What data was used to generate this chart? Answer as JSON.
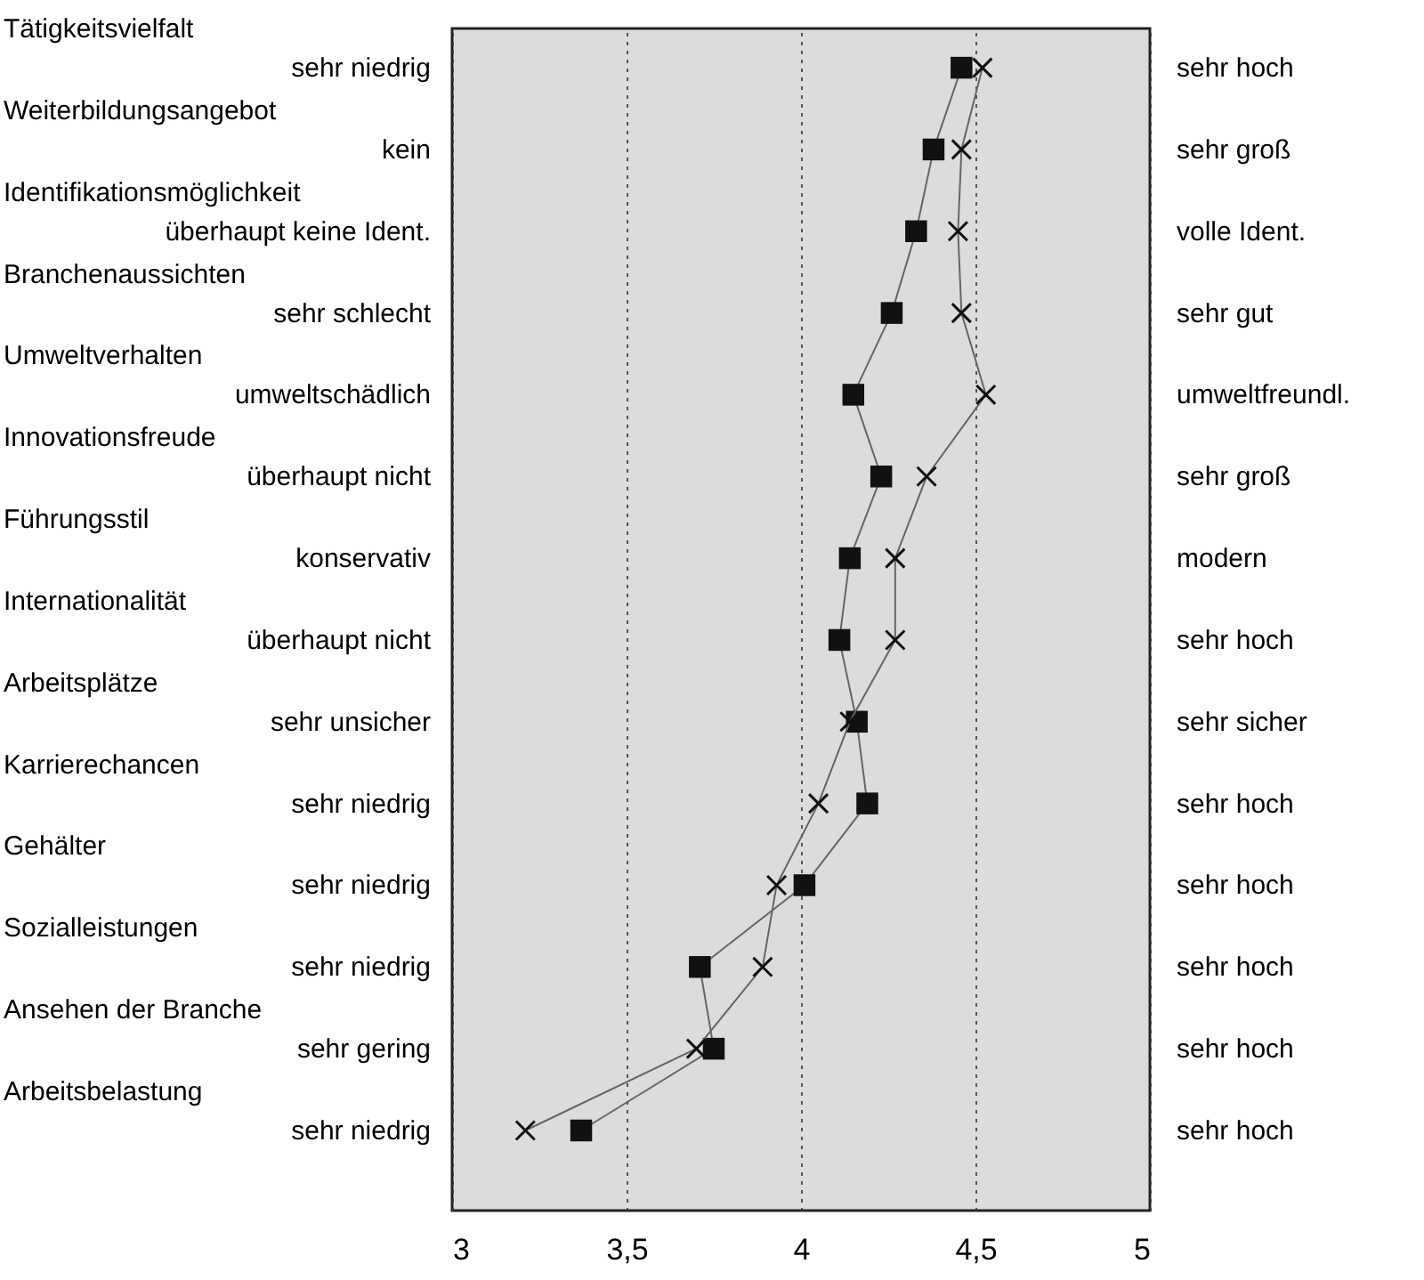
{
  "chart_data": {
    "type": "line",
    "categories": [
      "Tätigkeitsvielfalt\nsehr niedrig",
      "Weiterbildungsangebot\nkein",
      "Identifikationsmöglichkeit\nüberhaupt keine Ident.",
      "Branchenaussichten\nsehr schlecht",
      "Umweltverhalten\numweltschädlich",
      "Innovationsfreude\nüberhaupt nicht",
      "Führungsstil\nkonservativ",
      "Internationalität\nüberhaupt nicht",
      "Arbeitsplätze\nsehr unsicher",
      "Karrierechancen\nsehr niedrig",
      "Gehälter\nsehr niedrig",
      "Sozialleistungen\nsehr niedrig",
      "Ansehen der Branche\nsehr gering",
      "Arbeitsbelastung\nsehr niedrig"
    ],
    "y2_categories": [
      "sehr hoch",
      "sehr groß",
      "volle Ident.",
      "sehr gut",
      "umweltfreundl.",
      "sehr groß",
      "modern",
      "sehr hoch",
      "sehr sicher",
      "sehr hoch",
      "sehr hoch",
      "sehr hoch",
      "sehr hoch",
      "sehr hoch"
    ],
    "orientation": "horizontal",
    "series": [
      {
        "color": "#111111",
        "marker": "square",
        "values": [
          4.46,
          4.38,
          4.33,
          4.26,
          4.15,
          4.23,
          4.14,
          4.11,
          4.16,
          4.19,
          4.01,
          3.71,
          3.75,
          3.37
        ]
      },
      {
        "color": "#111111",
        "marker": "cross",
        "values": [
          4.52,
          4.46,
          4.45,
          4.46,
          4.53,
          4.36,
          4.27,
          4.27,
          4.14,
          4.05,
          3.93,
          3.89,
          3.7,
          3.21
        ]
      }
    ],
    "xlim": [
      3,
      5
    ],
    "xticks": [
      3,
      {
        "value": 3.5,
        "label": "3,5"
      },
      4,
      {
        "value": 4.5,
        "label": "4,5"
      },
      5
    ],
    "grid": "x",
    "line_style": "solid"
  }
}
